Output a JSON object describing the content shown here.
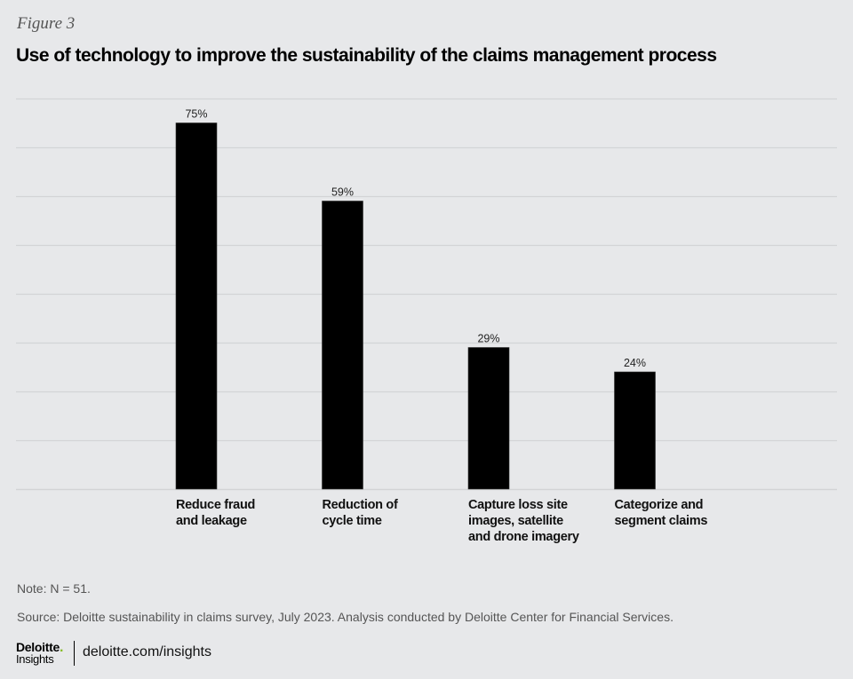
{
  "figure_label": "Figure 3",
  "title": "Use of technology to improve the sustainability of the claims management process",
  "chart_data": {
    "type": "bar",
    "title": "Use of technology to improve the sustainability of the claims management process",
    "categories": [
      "Reduce fraud\nand leakage",
      "Reduction of\ncycle time",
      "Capture loss site\nimages, satellite\nand drone imagery",
      "Categorize and\nsegment claims"
    ],
    "values": [
      75,
      59,
      29,
      24
    ],
    "data_labels": [
      "75%",
      "59%",
      "29%",
      "24%"
    ],
    "xlabel": "",
    "ylabel": "",
    "ylim": [
      0,
      80
    ],
    "grid": true,
    "grid_step": 10,
    "bar_color": "#000000",
    "grid_color": "#d3d4d6"
  },
  "footer": {
    "note": "Note: N = 51.",
    "source": "Source: Deloitte sustainability in claims survey, July 2023. Analysis conducted by Deloitte Center for Financial Services.",
    "logo_brand": "Deloitte",
    "logo_dot": ".",
    "logo_sub": "Insights",
    "url": "deloitte.com/insights",
    "accent_color": "#86bc25"
  }
}
